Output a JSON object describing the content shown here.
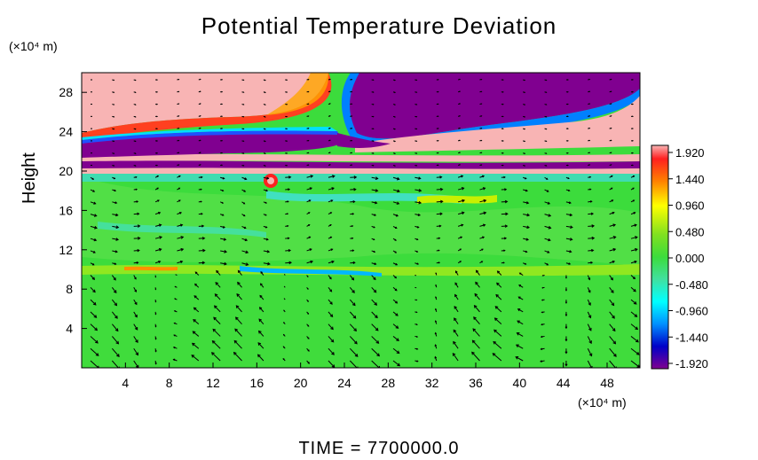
{
  "chart_data": {
    "type": "heatmap",
    "title": "Potential Temperature Deviation",
    "ylabel": "Height",
    "x_unit": "(×10⁴ m)",
    "y_unit": "(×10⁴ m)",
    "footer": "TIME = 7700000.0",
    "xlim": [
      0,
      51
    ],
    "ylim": [
      0,
      30
    ],
    "x_ticks": [
      4,
      8,
      12,
      16,
      20,
      24,
      28,
      32,
      36,
      40,
      44,
      48
    ],
    "y_ticks": [
      4,
      8,
      12,
      16,
      20,
      24,
      28
    ],
    "colorbar": {
      "ticks": [
        "1.920",
        "1.440",
        "0.960",
        "0.480",
        "0.000",
        "-0.480",
        "-0.960",
        "-1.440",
        "-1.920"
      ],
      "values": [
        1.92,
        1.44,
        0.96,
        0.48,
        0.0,
        -0.48,
        -0.96,
        -1.44,
        -1.92
      ],
      "range": [
        -1.92,
        1.92
      ],
      "colors": [
        "#f8b4b4",
        "#ff0000",
        "#ffa500",
        "#ffff00",
        "#3cdc3c",
        "#00ffff",
        "#0080ff",
        "#0000c0",
        "#800080"
      ]
    },
    "regions": [
      {
        "desc": "upper-left positive",
        "value": 1.92
      },
      {
        "desc": "upper-right negative",
        "value": -1.92
      },
      {
        "desc": "lower layer near zero",
        "value": 0.0
      }
    ],
    "vectors": "wind arrows overlay"
  }
}
